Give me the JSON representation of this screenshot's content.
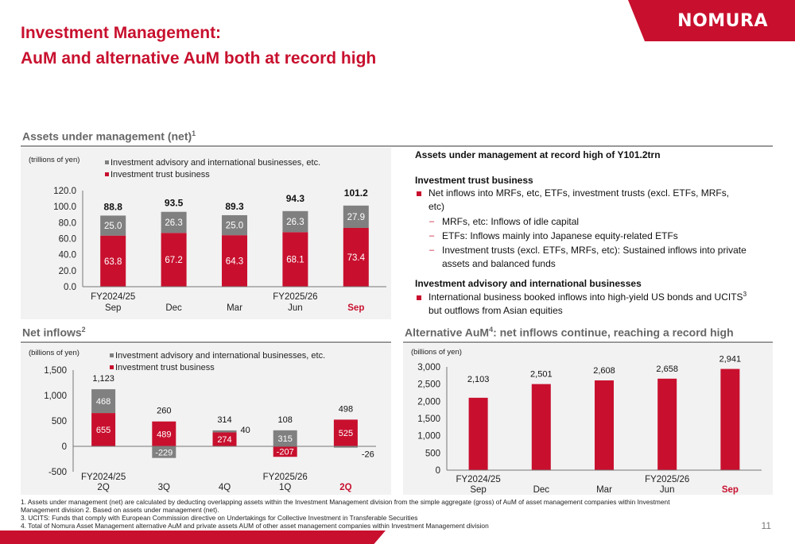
{
  "header": {
    "title_line1": "Investment Management:",
    "title_line2": "AuM and alternative AuM both at record high",
    "logo": "NOMURA"
  },
  "sections": {
    "aum_title": "Assets under management (net)",
    "aum_sup": "1",
    "inflows_title": "Net inflows",
    "inflows_sup": "2",
    "alt_title_pre": "Alternative AuM",
    "alt_sup": "4",
    "alt_title_post": ": net inflows continue, reaching a record high"
  },
  "commentary": {
    "headline": "Assets under management at record high of Y101.2trn",
    "itb_heading": "Investment trust business",
    "itb_bullet_l1": "Net inflows into MRFs, etc, ETFs, investment trusts (excl. ETFs, MRFs,",
    "itb_bullet_l2": "etc)",
    "sub1": "MRFs, etc: Inflows of idle capital",
    "sub2": "ETFs: Inflows mainly into Japanese equity-related ETFs",
    "sub3_l1": "Investment trusts (excl. ETFs, MRFs, etc): Sustained inflows into private",
    "sub3_l2": "assets and balanced funds",
    "iaib_heading": "Investment advisory and international businesses",
    "iaib_bullet_l1": "International business booked inflows into high-yield US bonds and UCITS",
    "iaib_sup": "3",
    "iaib_bullet_l2": "but outflows from Asian equities"
  },
  "chart_data": [
    {
      "type": "bar",
      "stacked": true,
      "title": "Assets under management (net)",
      "unit": "(trillions of yen)",
      "categories": [
        [
          "FY2024/25",
          "Sep"
        ],
        [
          "",
          "Dec"
        ],
        [
          "",
          "Mar"
        ],
        [
          "FY2025/26",
          "Jun"
        ],
        [
          "",
          "Sep"
        ]
      ],
      "highlight_last": true,
      "series": [
        {
          "name": "Investment advisory and international businesses, etc.",
          "color": "#808080",
          "values": [
            25.0,
            26.3,
            25.0,
            26.3,
            27.9
          ]
        },
        {
          "name": "Investment trust business",
          "color": "#c8102e",
          "values": [
            63.8,
            67.2,
            64.3,
            68.1,
            73.4
          ]
        }
      ],
      "totals": [
        "88.8",
        "93.5",
        "89.3",
        "94.3",
        "101.2"
      ],
      "labels_top": [
        "25.0",
        "26.3",
        "25.0",
        "26.3",
        "27.9"
      ],
      "labels_bottom": [
        "63.8",
        "67.2",
        "64.3",
        "68.1",
        "73.4"
      ],
      "ylim": [
        0,
        120
      ],
      "yticks": [
        "0.0",
        "20.0",
        "40.0",
        "60.0",
        "80.0",
        "100.0",
        "120.0"
      ]
    },
    {
      "type": "bar",
      "stacked": true,
      "title": "Net inflows",
      "unit": "(billions of yen)",
      "categories": [
        [
          "FY2024/25",
          "2Q"
        ],
        [
          "",
          "3Q"
        ],
        [
          "",
          "4Q"
        ],
        [
          "FY2025/26",
          "1Q"
        ],
        [
          "",
          "2Q"
        ]
      ],
      "highlight_last": true,
      "series": [
        {
          "name": "Investment advisory and international businesses, etc.",
          "color": "#808080",
          "values": [
            468,
            -229,
            40,
            315,
            -26
          ]
        },
        {
          "name": "Investment trust business",
          "color": "#c8102e",
          "values": [
            655,
            489,
            274,
            -207,
            525
          ]
        }
      ],
      "totals": [
        "1,123",
        "260",
        "314",
        "108",
        "498"
      ],
      "labels_gray": [
        "468",
        "-229",
        "40",
        "315",
        "-26"
      ],
      "labels_red": [
        "655",
        "489",
        "274",
        "-207",
        "525"
      ],
      "ylim": [
        -500,
        1500
      ],
      "yticks": [
        "-500",
        "0",
        "500",
        "1,000",
        "1,500"
      ]
    },
    {
      "type": "bar",
      "title": "Alternative AuM",
      "unit": "(billions of yen)",
      "categories": [
        [
          "FY2024/25",
          "Sep"
        ],
        [
          "",
          "Dec"
        ],
        [
          "",
          "Mar"
        ],
        [
          "FY2025/26",
          "Jun"
        ],
        [
          "",
          "Sep"
        ]
      ],
      "highlight_last": true,
      "series": [
        {
          "name": "Alternative AuM",
          "color": "#c8102e",
          "values": [
            2103,
            2501,
            2608,
            2658,
            2941
          ]
        }
      ],
      "labels": [
        "2,103",
        "2,501",
        "2,608",
        "2,658",
        "2,941"
      ],
      "ylim": [
        0,
        3000
      ],
      "yticks": [
        "0",
        "500",
        "1,000",
        "1,500",
        "2,000",
        "2,500",
        "3,000"
      ]
    }
  ],
  "notes": {
    "n1_l1": "1.      Assets under management (net) are calculated by deducting overlapping assets within the Investment Management division from the simple aggregate (gross) of AuM of asset management companies within Investment",
    "n1_l2": "Management division      2.      Based on assets under management (net).",
    "n3": "3.      UCITS: Funds that comply with European Commission directive on Undertakings for Collective Investment in Transferable Securities",
    "n4": "4.      Total of Nomura Asset Management alternative AuM and private assets AUM of other asset management companies within Investment Management division"
  },
  "page_number": "11",
  "colors": {
    "brand_red": "#c8102e",
    "gray": "#808080",
    "panel": "#f2f2f2"
  }
}
